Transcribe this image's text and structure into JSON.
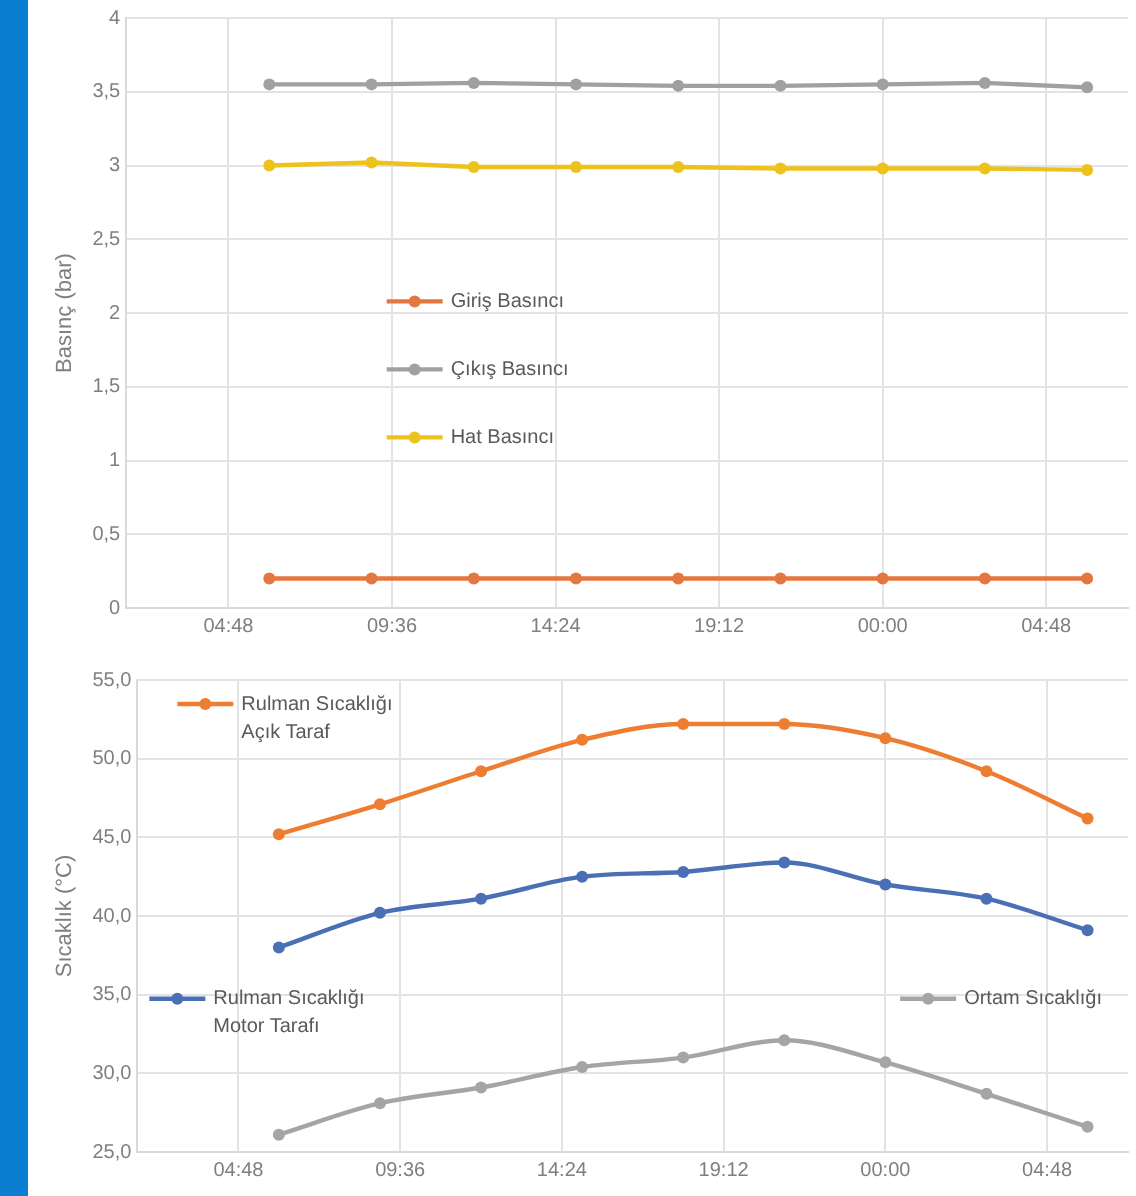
{
  "chart_data": [
    {
      "type": "line",
      "ylabel": "Basınç (bar)",
      "x": [
        "--01-01T06:00",
        "--01-01T09:00",
        "--01-01T12:00",
        "--01-01T15:00",
        "--01-01T18:00",
        "--01-01T21:00",
        "--01-02T00:00",
        "--01-02T03:00",
        "--01-02T06:00"
      ],
      "xlim": [
        "--01-01T01:48",
        "--01-02T07:12"
      ],
      "xticks": [
        {
          "value": "--01-01T04:48",
          "label": "04:48"
        },
        {
          "value": "--01-01T09:36",
          "label": "09:36"
        },
        {
          "value": "--01-01T14:24",
          "label": "14:24"
        },
        {
          "value": "--01-01T19:12",
          "label": "19:12"
        },
        {
          "value": "--01-02T00:00",
          "label": "00:00"
        },
        {
          "value": "--01-02T04:48",
          "label": "04:48"
        }
      ],
      "ylim": [
        0,
        4
      ],
      "yticks": [
        0,
        {
          "value": 0.5,
          "label": "0,5"
        },
        1,
        {
          "value": 1.5,
          "label": "1,5"
        },
        2,
        {
          "value": 2.5,
          "label": "2,5"
        },
        3,
        {
          "value": 3.5,
          "label": "3,5"
        },
        4
      ],
      "grid": true,
      "legend": "center left",
      "marker": "circle",
      "line_style": "solid",
      "series": [
        {
          "name": "Giriş Basıncı",
          "color": "#e4763f",
          "values": [
            0.2,
            0.2,
            0.2,
            0.2,
            0.2,
            0.2,
            0.2,
            0.2,
            0.2
          ]
        },
        {
          "name": "Çıkış Basıncı",
          "color": "#a0a0a0",
          "values": [
            3.55,
            3.55,
            3.56,
            3.55,
            3.54,
            3.54,
            3.55,
            3.56,
            3.53
          ]
        },
        {
          "name": "Hat Basıncı",
          "color": "#eec21c",
          "values": [
            3.0,
            3.02,
            2.99,
            2.99,
            2.99,
            2.98,
            2.98,
            2.98,
            2.97
          ]
        }
      ]
    },
    {
      "type": "line",
      "ylabel": "Sıcaklık (°C)",
      "x": [
        "--01-01T06:00",
        "--01-01T09:00",
        "--01-01T12:00",
        "--01-01T15:00",
        "--01-01T18:00",
        "--01-01T21:00",
        "--01-02T00:00",
        "--01-02T03:00",
        "--01-02T06:00"
      ],
      "xlim": [
        "--01-01T01:48",
        "--01-02T07:12"
      ],
      "xticks": [
        {
          "value": "--01-01T04:48",
          "label": "04:48"
        },
        {
          "value": "--01-01T09:36",
          "label": "09:36"
        },
        {
          "value": "--01-01T14:24",
          "label": "14:24"
        },
        {
          "value": "--01-01T19:12",
          "label": "19:12"
        },
        {
          "value": "--01-02T00:00",
          "label": "00:00"
        },
        {
          "value": "--01-02T04:48",
          "label": "04:48"
        }
      ],
      "ylim": [
        25,
        55
      ],
      "yticks": [
        {
          "value": 25,
          "label": "25,0"
        },
        {
          "value": 30,
          "label": "30,0"
        },
        {
          "value": 35,
          "label": "35,0"
        },
        {
          "value": 40,
          "label": "40,0"
        },
        {
          "value": 45,
          "label": "45,0"
        },
        {
          "value": 50,
          "label": "50,0"
        },
        {
          "value": 55,
          "label": "55,0"
        }
      ],
      "grid": true,
      "legend": "left",
      "marker": "circle",
      "line_style": "solid",
      "series": [
        {
          "name": "Rulman Sıcaklığı Açık Taraf",
          "color": "#ed7d31",
          "values": [
            45.2,
            47.1,
            49.2,
            51.2,
            52.2,
            52.2,
            51.3,
            49.2,
            46.2
          ]
        },
        {
          "name": "Rulman Sıcaklığı Motor Tarafı",
          "color": "#4a6fb5",
          "values": [
            38.0,
            40.2,
            41.1,
            42.5,
            42.8,
            43.4,
            42.0,
            41.1,
            39.1
          ]
        },
        {
          "name": "Ortam Sıcaklığı",
          "color": "#a5a5a5",
          "values": [
            26.1,
            28.1,
            29.1,
            30.4,
            31.0,
            32.1,
            30.7,
            28.7,
            26.6
          ]
        }
      ]
    }
  ]
}
